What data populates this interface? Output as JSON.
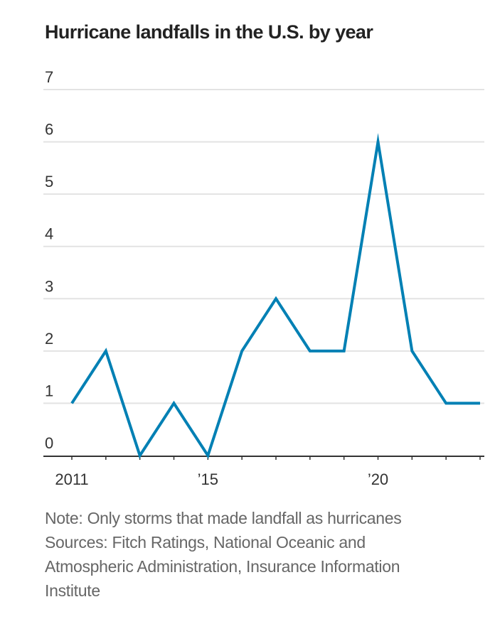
{
  "title": "Hurricane landfalls in the U.S. by year",
  "note": "Note: Only storms that made landfall as hurricanes",
  "sources_lines": [
    "Sources: Fitch Ratings, National Oceanic and",
    "Atmospheric Administration, Insurance Information",
    "Institute"
  ],
  "colors": {
    "line": "#0080b4",
    "grid": "#e3e3e3",
    "axis": "#333333"
  },
  "chart_data": {
    "type": "line",
    "title": "Hurricane landfalls in the U.S. by year",
    "xlabel": "",
    "ylabel": "",
    "x": [
      2011,
      2012,
      2013,
      2014,
      2015,
      2016,
      2017,
      2018,
      2019,
      2020,
      2021,
      2022,
      2023
    ],
    "series": [
      {
        "name": "Hurricane landfalls",
        "values": [
          1,
          2,
          0,
          1,
          0,
          2,
          3,
          2,
          2,
          6,
          2,
          1,
          1
        ]
      }
    ],
    "ylim": [
      0,
      7
    ],
    "xlim": [
      2011,
      2023
    ],
    "yticks": [
      0,
      1,
      2,
      3,
      4,
      5,
      6,
      7
    ],
    "ytick_labels": [
      "0",
      "1",
      "2",
      "3",
      "4",
      "5",
      "6",
      "7"
    ],
    "xtick_labels": [
      {
        "x": 2011,
        "label": "2011"
      },
      {
        "x": 2015,
        "label": "’15"
      },
      {
        "x": 2020,
        "label": "’20"
      }
    ],
    "grid": true,
    "legend": "none"
  }
}
